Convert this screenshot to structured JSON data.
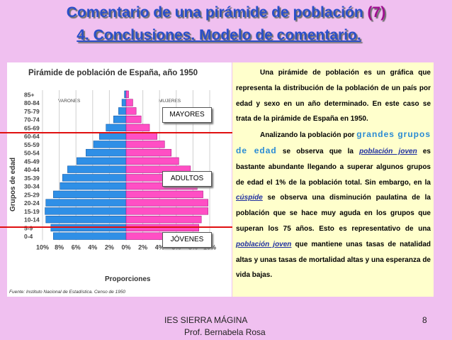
{
  "slide": {
    "title_main": "Comentario de una pirámide de población ",
    "title_num": "(7)",
    "subtitle": "4. Conclusiones. Modelo de comentario."
  },
  "chart_data": {
    "type": "bar",
    "title": "Pirámide de población de España, año 1950",
    "left_header": "VARONES",
    "right_header": "MUJERES",
    "ylabel": "Grupos de edad",
    "xlabel": "Proporciones",
    "source": "Fuente: Instituto Nacional de Estadística. Censo de 1950",
    "categories": [
      "85+",
      "80-84",
      "75-79",
      "70-74",
      "65-69",
      "60-64",
      "55-59",
      "50-54",
      "45-49",
      "40-44",
      "35-39",
      "30-34",
      "25-29",
      "20-24",
      "15-19",
      "10-14",
      "5-9",
      "0-4"
    ],
    "x_ticks": [
      "10%",
      "8%",
      "6%",
      "4%",
      "2%",
      "0%",
      "2%",
      "4%",
      "6%",
      "8%",
      "10%"
    ],
    "xlim": [
      -10,
      10
    ],
    "series": [
      {
        "name": "VARONES",
        "values": [
          0.2,
          0.5,
          0.9,
          1.5,
          2.4,
          3.2,
          3.9,
          4.8,
          5.9,
          7.0,
          7.6,
          7.9,
          8.7,
          9.6,
          9.7,
          9.6,
          9.0,
          8.7
        ]
      },
      {
        "name": "MUJERES",
        "values": [
          0.3,
          0.8,
          1.2,
          1.8,
          2.8,
          3.7,
          4.6,
          5.4,
          6.3,
          7.7,
          8.6,
          8.5,
          9.2,
          9.8,
          9.8,
          9.0,
          8.7,
          8.5
        ]
      }
    ]
  },
  "bands": {
    "mayores": "MAYORES",
    "adultos": "ADULTOS",
    "jovenes": "JÓVENES"
  },
  "text": {
    "p1": "Una pirámide de población es un gráfica que representa la distribución de la población de un país por edad y sexo en un año determinado. En este caso se trata de la pirámide de España en 1950.",
    "p2_a": "Analizando la población por ",
    "p2_hl": "grandes grupos de edad",
    "p2_b": " se observa que la ",
    "p2_ul1": "población joven",
    "p2_c": " es bastante abundante llegando a superar algunos grupos de edad el 1% de la población total. Sin embargo, en la ",
    "p2_ul2": "cúspide",
    "p2_d": " se observa una disminución paulatina de la población que se hace muy aguda en los grupos que superan los 75 años. Esto es representativo de una ",
    "p2_ul3": "población joven",
    "p2_e": " que mantiene unas tasas de natalidad altas y unas tasas de mortalidad altas y una esperanza de vida bajas."
  },
  "footer": {
    "school": "IES SIERRA MÁGINA",
    "author": "Prof. Bernabela Rosa",
    "page": "8"
  }
}
